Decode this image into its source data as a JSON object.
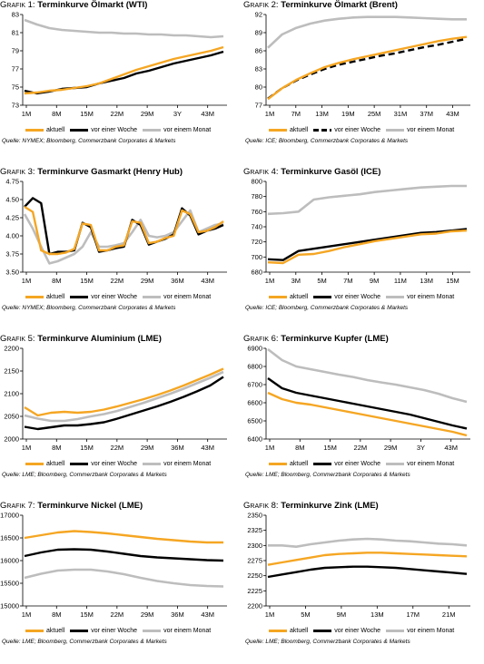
{
  "colors": {
    "aktuell": "#f5a623",
    "woche": "#000000",
    "monat": "#bdbdbd"
  },
  "legend_labels": {
    "aktuell": "aktuell",
    "woche": "vor einer Woche",
    "monat": "vor einem Monat"
  },
  "chart_data": [
    {
      "type": "line",
      "title_prefix": "Grafik 1:",
      "title": "Terminkurve Ölmarkt (WTI)",
      "source": "Quelle: NYMEX; Bloomberg, Commerzbank Corporates & Markets",
      "x_ticks": [
        "1M",
        "8M",
        "15M",
        "22M",
        "29M",
        "3Y",
        "43M"
      ],
      "ylim": [
        73,
        83
      ],
      "y_ticks": [
        "73",
        "75",
        "77",
        "79",
        "81",
        "83"
      ],
      "series": [
        {
          "name": "aktuell",
          "values": [
            74.3,
            74.4,
            74.6,
            74.7,
            74.9,
            75.1,
            75.4,
            75.9,
            76.4,
            76.9,
            77.3,
            77.7,
            78.1,
            78.4,
            78.7,
            79.0,
            79.4
          ]
        },
        {
          "name": "vor einer Woche",
          "values": [
            74.6,
            74.3,
            74.5,
            74.8,
            74.9,
            75.0,
            75.4,
            75.7,
            76.0,
            76.5,
            76.8,
            77.2,
            77.6,
            77.9,
            78.2,
            78.5,
            78.9
          ]
        },
        {
          "name": "vor einem Monat",
          "values": [
            82.4,
            81.9,
            81.5,
            81.3,
            81.2,
            81.1,
            81.0,
            81.0,
            80.9,
            80.9,
            80.8,
            80.8,
            80.7,
            80.7,
            80.6,
            80.5,
            80.6
          ]
        }
      ]
    },
    {
      "type": "line",
      "title_prefix": "Grafik 2:",
      "title": "Terminkurve Ölmarkt (Brent)",
      "source": "Quelle: ICE; Bloomberg, Commerzbank Corporates & Markets",
      "x_ticks": [
        "1M",
        "7M",
        "13M",
        "19M",
        "25M",
        "31M",
        "37M",
        "43M"
      ],
      "ylim": [
        77,
        92
      ],
      "y_ticks": [
        "77",
        "80",
        "83",
        "86",
        "89",
        "92"
      ],
      "series": [
        {
          "name": "aktuell",
          "values": [
            78.0,
            79.8,
            81.2,
            82.3,
            83.3,
            84.0,
            84.6,
            85.1,
            85.6,
            86.1,
            86.6,
            87.1,
            87.6,
            88.0,
            88.3
          ]
        },
        {
          "name": "vor einer Woche",
          "values": [
            78.1,
            79.8,
            81.1,
            82.1,
            83.0,
            83.7,
            84.2,
            84.7,
            85.2,
            85.6,
            86.1,
            86.6,
            87.0,
            87.5,
            88.0
          ]
        },
        {
          "name": "vor einem Monat",
          "values": [
            86.5,
            88.7,
            89.8,
            90.5,
            91.0,
            91.3,
            91.5,
            91.6,
            91.6,
            91.6,
            91.5,
            91.4,
            91.3,
            91.2,
            91.2
          ]
        }
      ]
    },
    {
      "type": "line",
      "title_prefix": "Grafik 3:",
      "title": "Terminkurve Gasmarkt (Henry Hub)",
      "source": "Quelle: NYMEX; Bloomberg, Commerzbank Corporates & Markets",
      "x_ticks": [
        "1M",
        "8M",
        "15M",
        "22M",
        "29M",
        "36M",
        "43M"
      ],
      "ylim": [
        3.5,
        4.75
      ],
      "y_ticks": [
        "3.50",
        "3.75",
        "4.00",
        "4.25",
        "4.50",
        "4.75"
      ],
      "series": [
        {
          "name": "aktuell",
          "values": [
            4.4,
            4.33,
            3.8,
            3.75,
            3.75,
            3.77,
            3.82,
            4.17,
            4.15,
            3.8,
            3.8,
            3.85,
            3.87,
            4.2,
            4.18,
            3.9,
            3.92,
            3.97,
            4.0,
            4.35,
            4.3,
            4.05,
            4.07,
            4.12,
            4.2
          ]
        },
        {
          "name": "vor einer Woche",
          "values": [
            4.4,
            4.52,
            4.45,
            3.75,
            3.78,
            3.78,
            3.8,
            4.18,
            4.12,
            3.78,
            3.8,
            3.83,
            3.85,
            4.22,
            4.15,
            3.88,
            3.92,
            3.96,
            4.02,
            4.38,
            4.28,
            4.02,
            4.07,
            4.1,
            4.15
          ]
        },
        {
          "name": "vor einem Monat",
          "values": [
            4.3,
            4.1,
            3.85,
            3.62,
            3.65,
            3.7,
            3.75,
            3.85,
            4.05,
            3.85,
            3.85,
            3.87,
            3.9,
            4.05,
            4.22,
            4.0,
            3.98,
            4.0,
            4.05,
            4.2,
            4.35,
            4.05,
            4.1,
            4.15,
            4.17
          ]
        }
      ]
    },
    {
      "type": "line",
      "title_prefix": "Grafik 4:",
      "title": "Terminkurve Gasöl (ICE)",
      "source": "Quelle: ICE; Bloomberg, Commerzbank Corporates & Markets",
      "x_ticks": [
        "1M",
        "3M",
        "5M",
        "7M",
        "9M",
        "11M",
        "13M",
        "15M"
      ],
      "ylim": [
        680,
        800
      ],
      "y_ticks": [
        "680",
        "700",
        "720",
        "740",
        "760",
        "780",
        "800"
      ],
      "series": [
        {
          "name": "aktuell",
          "values": [
            693,
            692,
            703,
            704,
            708,
            713,
            717,
            721,
            724,
            727,
            730,
            731,
            734,
            735
          ]
        },
        {
          "name": "vor einer Woche",
          "values": [
            697,
            696,
            708,
            711,
            714,
            717,
            720,
            723,
            726,
            729,
            732,
            733,
            735,
            737
          ]
        },
        {
          "name": "vor einem Monat",
          "values": [
            757,
            758,
            760,
            776,
            779,
            781,
            783,
            786,
            788,
            790,
            792,
            793,
            794,
            794
          ]
        }
      ]
    },
    {
      "type": "line",
      "title_prefix": "Grafik 5:",
      "title": "Terminkurve Aluminium (LME)",
      "source": "Quelle: LME; Bloomberg, Commerzbank Corporates & Markets",
      "x_ticks": [
        "1M",
        "8M",
        "15M",
        "22M",
        "29M",
        "36M",
        "43M"
      ],
      "ylim": [
        2000,
        2200
      ],
      "y_ticks": [
        "2000",
        "2050",
        "2100",
        "2150",
        "2200"
      ],
      "series": [
        {
          "name": "aktuell",
          "values": [
            2070,
            2052,
            2058,
            2060,
            2058,
            2060,
            2065,
            2072,
            2080,
            2088,
            2097,
            2107,
            2118,
            2130,
            2142,
            2155
          ]
        },
        {
          "name": "vor einer Woche",
          "values": [
            2027,
            2022,
            2026,
            2030,
            2030,
            2033,
            2037,
            2045,
            2054,
            2063,
            2072,
            2082,
            2093,
            2105,
            2118,
            2137
          ]
        },
        {
          "name": "vor einem Monat",
          "values": [
            2052,
            2045,
            2040,
            2040,
            2044,
            2050,
            2055,
            2062,
            2071,
            2080,
            2090,
            2100,
            2111,
            2123,
            2135,
            2148
          ]
        }
      ]
    },
    {
      "type": "line",
      "title_prefix": "Grafik 6:",
      "title": "Terminkurve Kupfer (LME)",
      "source": "Quelle: LME; Bloomberg, Commerzbank Corporates & Markets",
      "x_ticks": [
        "1M",
        "8M",
        "15M",
        "22M",
        "29M",
        "3Y",
        "43M"
      ],
      "ylim": [
        6400,
        6900
      ],
      "y_ticks": [
        "6400",
        "6500",
        "6600",
        "6700",
        "6800",
        "6900"
      ],
      "series": [
        {
          "name": "aktuell",
          "values": [
            6655,
            6620,
            6600,
            6590,
            6575,
            6560,
            6545,
            6530,
            6515,
            6500,
            6485,
            6470,
            6455,
            6440,
            6420
          ]
        },
        {
          "name": "vor einer Woche",
          "values": [
            6735,
            6680,
            6655,
            6640,
            6625,
            6610,
            6595,
            6580,
            6565,
            6550,
            6535,
            6515,
            6495,
            6475,
            6458
          ]
        },
        {
          "name": "vor einem Monat",
          "values": [
            6895,
            6835,
            6800,
            6785,
            6770,
            6755,
            6742,
            6725,
            6712,
            6700,
            6685,
            6670,
            6650,
            6625,
            6605
          ]
        }
      ]
    },
    {
      "type": "line",
      "title_prefix": "Grafik 7:",
      "title": "Terminkurve Nickel (LME)",
      "source": "Quelle: LME; Bloomberg, Commerzbank Corporates & Markets",
      "x_ticks": [
        "1M",
        "8M",
        "15M",
        "22M",
        "29M",
        "36M",
        "43M"
      ],
      "ylim": [
        15000,
        17000
      ],
      "y_ticks": [
        "15000",
        "15500",
        "16000",
        "16500",
        "17000"
      ],
      "series": [
        {
          "name": "aktuell",
          "values": [
            16500,
            16560,
            16620,
            16650,
            16630,
            16600,
            16560,
            16520,
            16480,
            16450,
            16420,
            16400,
            16400
          ]
        },
        {
          "name": "vor einer Woche",
          "values": [
            16100,
            16180,
            16240,
            16250,
            16240,
            16200,
            16150,
            16100,
            16070,
            16050,
            16030,
            16010,
            16000
          ]
        },
        {
          "name": "vor einem Monat",
          "values": [
            15620,
            15710,
            15780,
            15800,
            15800,
            15760,
            15700,
            15620,
            15550,
            15500,
            15460,
            15440,
            15430
          ]
        }
      ]
    },
    {
      "type": "line",
      "title_prefix": "Grafik 8:",
      "title": "Terminkurve Zink (LME)",
      "source": "Quelle: LME; Bloomberg, Commerzbank Corporates & Markets",
      "x_ticks": [
        "1M",
        "5M",
        "9M",
        "13M",
        "17M",
        "21M"
      ],
      "ylim": [
        2200,
        2350
      ],
      "y_ticks": [
        "2200",
        "2225",
        "2250",
        "2275",
        "2300",
        "2325",
        "2350"
      ],
      "series": [
        {
          "name": "aktuell",
          "values": [
            2268,
            2272,
            2276,
            2280,
            2284,
            2286,
            2287,
            2288,
            2288,
            2287,
            2286,
            2285,
            2284,
            2283,
            2282
          ]
        },
        {
          "name": "vor einer Woche",
          "values": [
            2248,
            2252,
            2256,
            2260,
            2263,
            2264,
            2265,
            2265,
            2264,
            2263,
            2261,
            2259,
            2257,
            2255,
            2253
          ]
        },
        {
          "name": "vor einem Monat",
          "values": [
            2300,
            2300,
            2298,
            2302,
            2305,
            2308,
            2310,
            2311,
            2310,
            2308,
            2307,
            2305,
            2303,
            2302,
            2300
          ]
        }
      ]
    }
  ]
}
